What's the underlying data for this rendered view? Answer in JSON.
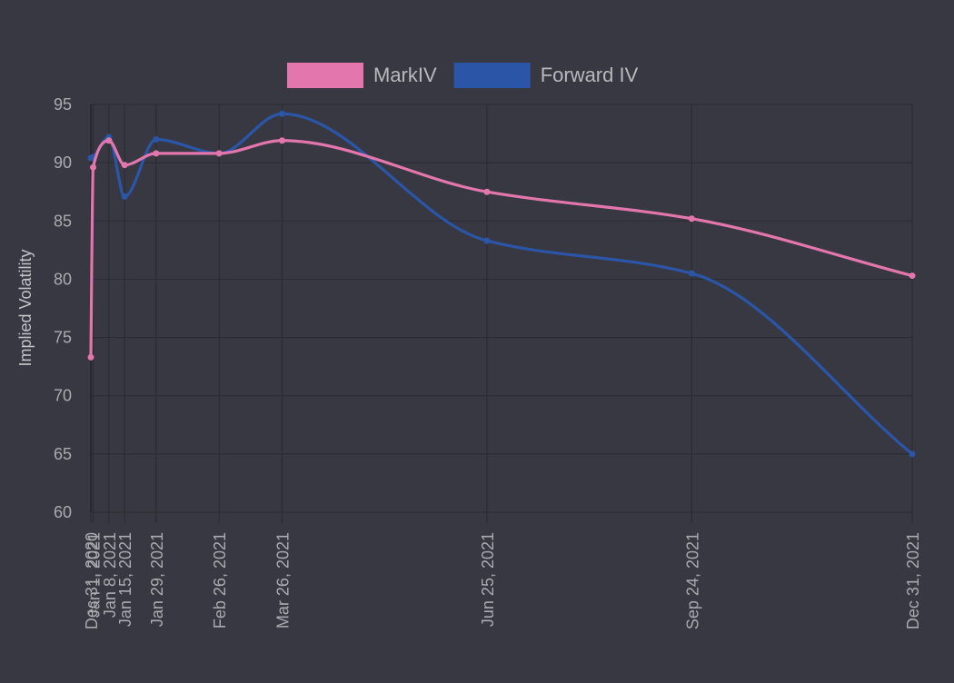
{
  "chart_data": {
    "type": "line",
    "ylabel": "Implied Volatility",
    "ylim": [
      60,
      95
    ],
    "yticks": [
      95,
      90,
      85,
      80,
      75,
      70,
      65,
      60
    ],
    "x_dates": [
      "2020-12-31",
      "2021-01-01",
      "2021-01-08",
      "2021-01-15",
      "2021-01-29",
      "2021-02-26",
      "2021-03-26",
      "2021-06-25",
      "2021-09-24",
      "2021-12-31"
    ],
    "x_tick_labels": [
      "Dec 31, 2020",
      "Jan 1, 2021",
      "Jan 8, 2021",
      "Jan 15, 2021",
      "Jan 29, 2021",
      "Feb 26, 2021",
      "Mar 26, 2021",
      "Jun 25, 2021",
      "Sep 24, 2021",
      "Dec 31, 2021"
    ],
    "grid": true,
    "legend_position": "top",
    "series": [
      {
        "name": "MarkIV",
        "color": "#e377ad",
        "values": [
          73.3,
          89.6,
          91.9,
          89.8,
          90.8,
          90.8,
          91.9,
          87.5,
          85.2,
          80.3
        ]
      },
      {
        "name": "Forward IV",
        "color": "#2b56a8",
        "values": [
          90.4,
          90.5,
          92.2,
          87.1,
          92.0,
          90.8,
          94.2,
          83.3,
          80.5,
          65.0
        ]
      }
    ]
  }
}
